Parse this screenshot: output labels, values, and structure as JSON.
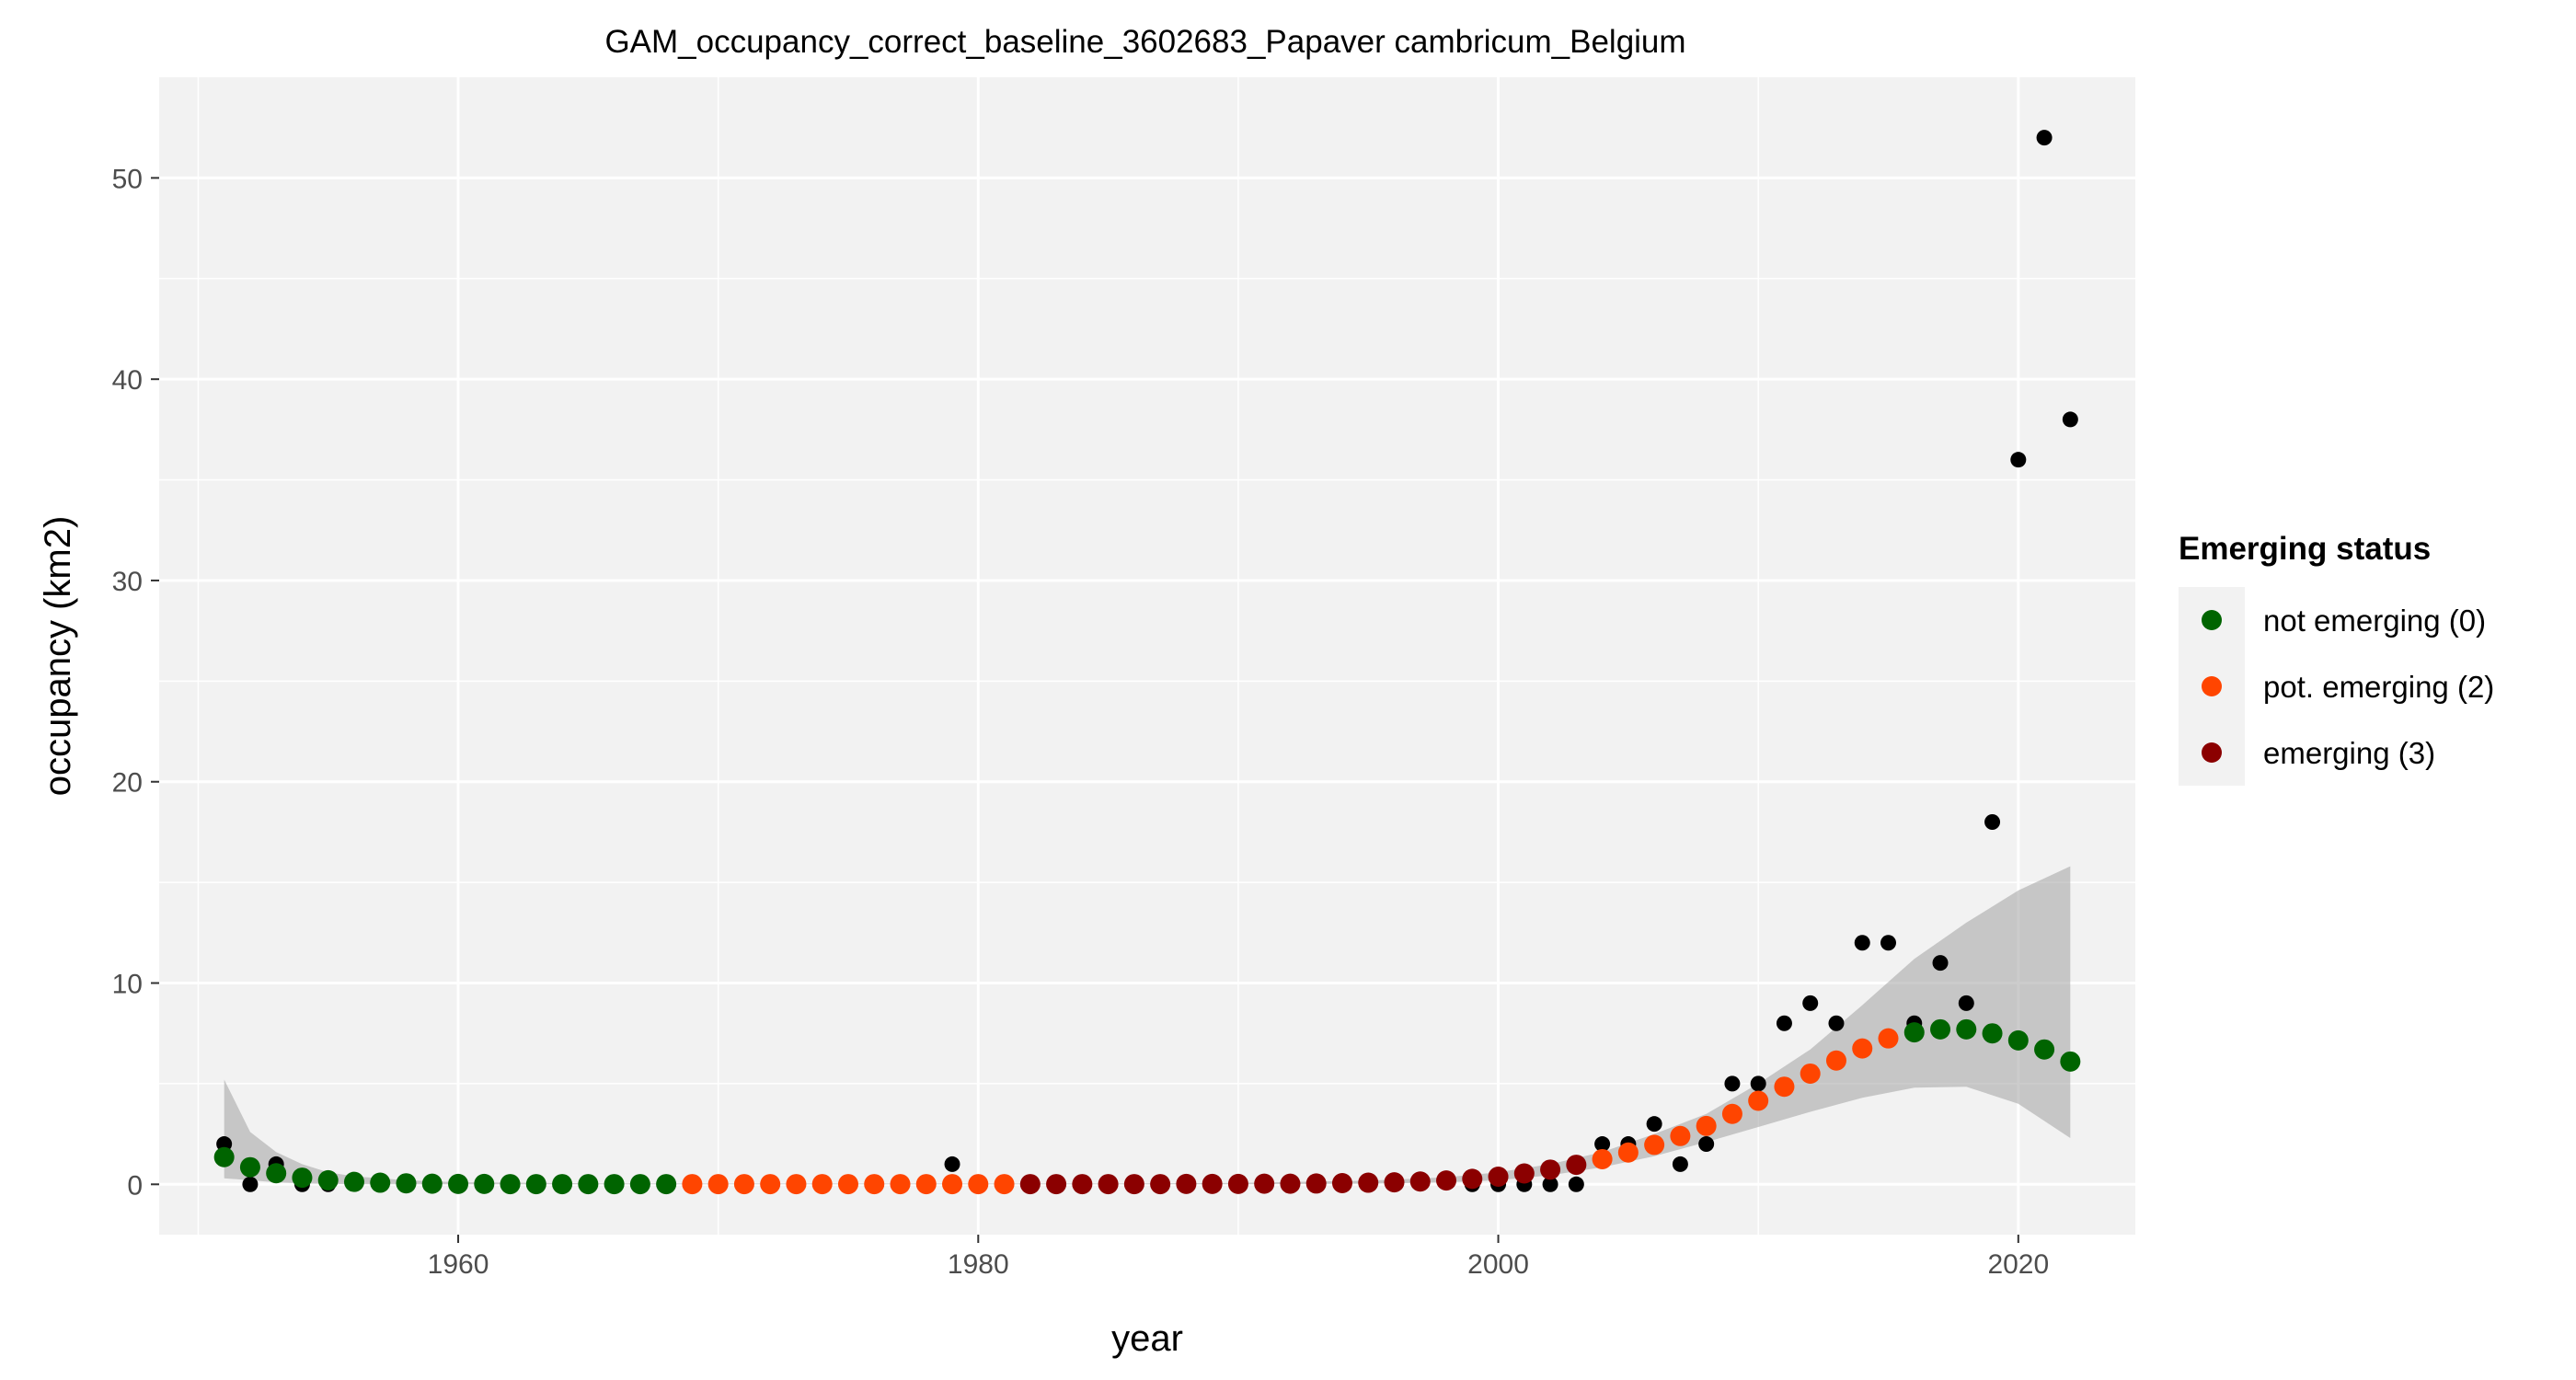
{
  "chart_data": {
    "type": "scatter",
    "title": "GAM_occupancy_correct_baseline_3602683_Papaver cambricum_Belgium",
    "xlabel": "year",
    "ylabel": "occupancy (km2)",
    "xlim": [
      1948.5,
      2024.5
    ],
    "ylim": [
      -2.5,
      55
    ],
    "x_ticks": [
      1960,
      1980,
      2000,
      2020
    ],
    "y_ticks": [
      0,
      10,
      20,
      30,
      40,
      50
    ],
    "grid": true,
    "legend": {
      "title": "Emerging status",
      "position": "right",
      "entries": [
        {
          "label": "not emerging (0)",
          "color": "#006400"
        },
        {
          "label": "pot. emerging (2)",
          "color": "#FF4500"
        },
        {
          "label": "emerging (3)",
          "color": "#8B0000"
        }
      ]
    },
    "observed": {
      "color": "#000000",
      "points": [
        [
          1951,
          2
        ],
        [
          1952,
          0
        ],
        [
          1953,
          1
        ],
        [
          1954,
          0
        ],
        [
          1955,
          0
        ],
        [
          1979,
          1
        ],
        [
          1999,
          0
        ],
        [
          2000,
          0
        ],
        [
          2001,
          0
        ],
        [
          2002,
          0
        ],
        [
          2003,
          0
        ],
        [
          2004,
          2
        ],
        [
          2005,
          2
        ],
        [
          2006,
          3
        ],
        [
          2007,
          1
        ],
        [
          2008,
          2
        ],
        [
          2009,
          5
        ],
        [
          2010,
          5
        ],
        [
          2011,
          8
        ],
        [
          2012,
          9
        ],
        [
          2013,
          8
        ],
        [
          2014,
          12
        ],
        [
          2015,
          12
        ],
        [
          2016,
          8
        ],
        [
          2017,
          11
        ],
        [
          2018,
          9
        ],
        [
          2019,
          18
        ],
        [
          2020,
          36
        ],
        [
          2021,
          52
        ],
        [
          2022,
          38
        ]
      ]
    },
    "fitted": {
      "years": [
        1951,
        1952,
        1953,
        1954,
        1955,
        1956,
        1957,
        1958,
        1959,
        1960,
        1961,
        1962,
        1963,
        1964,
        1965,
        1966,
        1967,
        1968,
        1969,
        1970,
        1971,
        1972,
        1973,
        1974,
        1975,
        1976,
        1977,
        1978,
        1979,
        1980,
        1981,
        1982,
        1983,
        1984,
        1985,
        1986,
        1987,
        1988,
        1989,
        1990,
        1991,
        1992,
        1993,
        1994,
        1995,
        1996,
        1997,
        1998,
        1999,
        2000,
        2001,
        2002,
        2003,
        2004,
        2005,
        2006,
        2007,
        2008,
        2009,
        2010,
        2011,
        2012,
        2013,
        2014,
        2015,
        2016,
        2017,
        2018,
        2019,
        2020,
        2021,
        2022
      ],
      "values": [
        1.35,
        0.85,
        0.55,
        0.33,
        0.2,
        0.12,
        0.08,
        0.05,
        0.03,
        0.02,
        0.02,
        0.01,
        0.01,
        0.01,
        0.01,
        0.01,
        0.01,
        0.01,
        0.01,
        0.01,
        0.01,
        0.01,
        0.01,
        0.01,
        0.01,
        0.01,
        0.01,
        0.01,
        0.01,
        0.01,
        0.01,
        0.01,
        0.01,
        0.01,
        0.01,
        0.01,
        0.01,
        0.02,
        0.02,
        0.02,
        0.03,
        0.03,
        0.04,
        0.06,
        0.08,
        0.1,
        0.14,
        0.19,
        0.27,
        0.38,
        0.54,
        0.73,
        0.97,
        1.25,
        1.58,
        1.96,
        2.4,
        2.9,
        3.5,
        4.15,
        4.85,
        5.5,
        6.15,
        6.75,
        7.25,
        7.55,
        7.7,
        7.7,
        7.5,
        7.15,
        6.7,
        6.1
      ],
      "status": [
        0,
        0,
        0,
        0,
        0,
        0,
        0,
        0,
        0,
        0,
        0,
        0,
        0,
        0,
        0,
        0,
        0,
        0,
        2,
        2,
        2,
        2,
        2,
        2,
        2,
        2,
        2,
        2,
        2,
        2,
        2,
        3,
        3,
        3,
        3,
        3,
        3,
        3,
        3,
        3,
        3,
        3,
        3,
        3,
        3,
        3,
        3,
        3,
        3,
        3,
        3,
        3,
        3,
        2,
        2,
        2,
        2,
        2,
        2,
        2,
        2,
        2,
        2,
        2,
        2,
        0,
        0,
        0,
        0,
        0,
        0,
        0
      ]
    },
    "ci_band": {
      "color": "#999999",
      "x": [
        1951,
        1952,
        1953,
        1954,
        1955,
        1956,
        1958,
        1960,
        1965,
        1970,
        1975,
        1980,
        1985,
        1990,
        1995,
        1998,
        2000,
        2002,
        2004,
        2006,
        2008,
        2010,
        2012,
        2014,
        2016,
        2018,
        2020,
        2022
      ],
      "lower": [
        0.3,
        0.2,
        0.1,
        0.05,
        0.02,
        0.01,
        0.0,
        0.0,
        0.0,
        0.0,
        0.0,
        0.0,
        0.0,
        0.0,
        0.03,
        0.1,
        0.2,
        0.45,
        0.85,
        1.4,
        2.1,
        2.85,
        3.6,
        4.3,
        4.8,
        4.85,
        4.0,
        2.3
      ],
      "upper": [
        5.2,
        2.6,
        1.6,
        1.0,
        0.6,
        0.4,
        0.2,
        0.1,
        0.05,
        0.04,
        0.04,
        0.04,
        0.04,
        0.07,
        0.18,
        0.35,
        0.6,
        1.0,
        1.6,
        2.5,
        3.5,
        5.0,
        6.7,
        8.9,
        11.2,
        13.0,
        14.6,
        15.8
      ]
    }
  }
}
